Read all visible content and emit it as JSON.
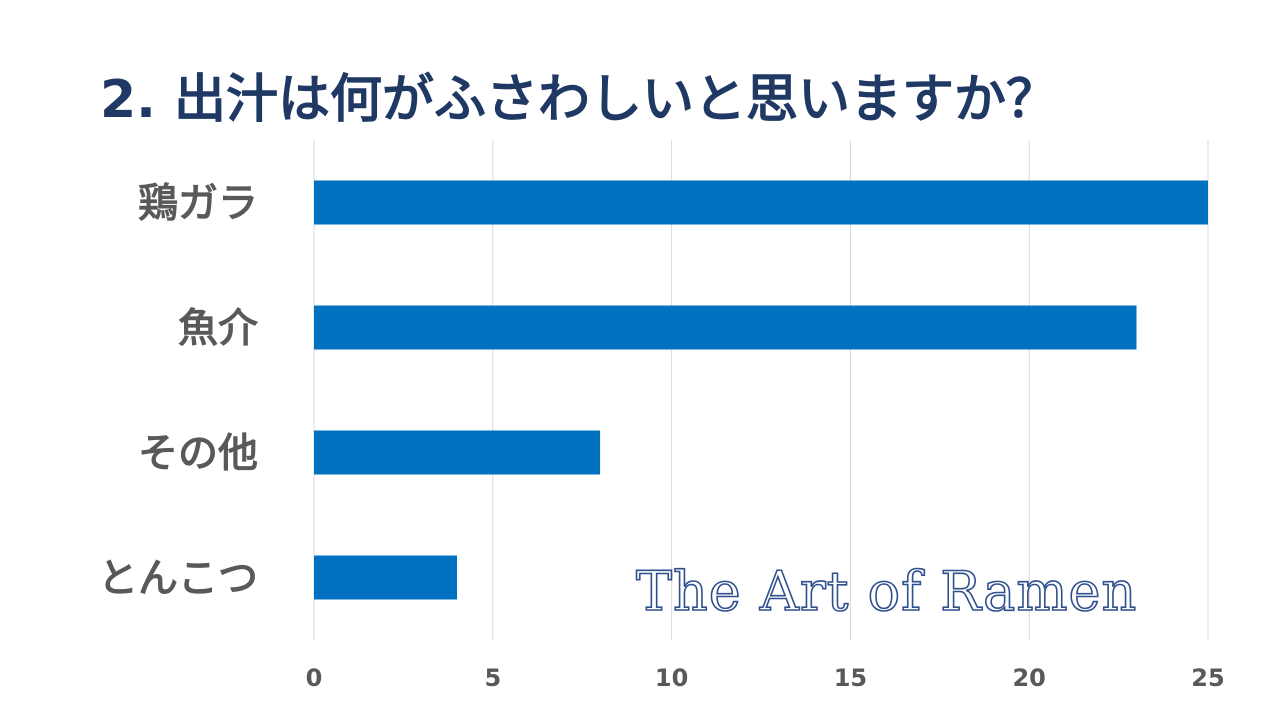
{
  "chart_data": {
    "type": "bar",
    "orientation": "horizontal",
    "title": "2. 出汁は何がふさわしいと思いますか？",
    "categories": [
      "鶏ガラ",
      "魚介",
      "その他",
      "とんこつ"
    ],
    "values": [
      25,
      23,
      8,
      4
    ],
    "xlim": [
      0,
      25
    ],
    "xticks": [
      0,
      5,
      10,
      15,
      20,
      25
    ],
    "xlabel": "",
    "ylabel": "",
    "grid": "vertical",
    "bar_color": "#0070c0",
    "grid_color": "#d9d9d9"
  },
  "watermark": {
    "text": "The Art of Ramen"
  }
}
